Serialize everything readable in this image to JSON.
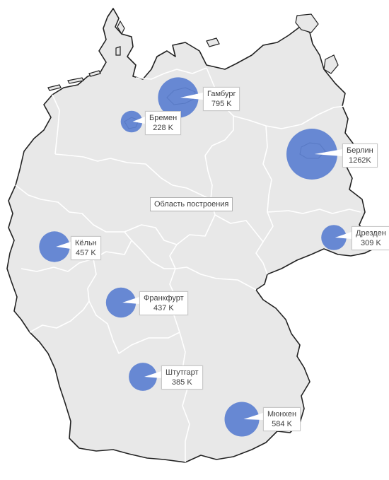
{
  "plot_area_tooltip": "Область построения",
  "colors": {
    "land": "#e8e8e8",
    "border": "#222222",
    "inner_border": "#ffffff",
    "bubble": "#5b7fd0"
  },
  "chart_data": {
    "type": "bubble-map",
    "size_metric": "population (thousands)",
    "cities": [
      {
        "name": "Гамбург",
        "value_label": "795 K",
        "value": 795
      },
      {
        "name": "Бремен",
        "value_label": "228 K",
        "value": 228
      },
      {
        "name": "Берлин",
        "value_label": "1262K",
        "value": 1262
      },
      {
        "name": "Кёльн",
        "value_label": "457 K",
        "value": 457
      },
      {
        "name": "Дрезден",
        "value_label": "309 K",
        "value": 309
      },
      {
        "name": "Франкфурт",
        "value_label": "437 K",
        "value": 437
      },
      {
        "name": "Штутгарт",
        "value_label": "385 K",
        "value": 385
      },
      {
        "name": "Мюнхен",
        "value_label": "584 K",
        "value": 584
      }
    ]
  }
}
